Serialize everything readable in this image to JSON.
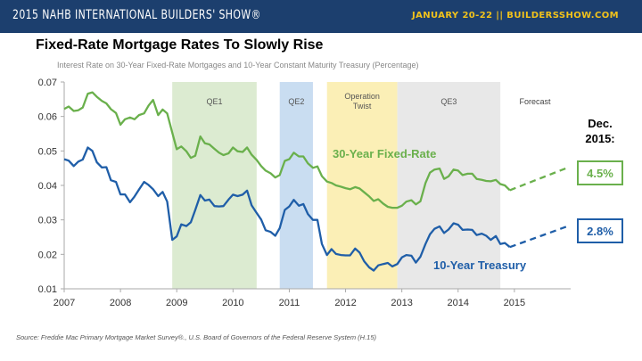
{
  "header": {
    "show_title": "2015 NAHB INTERNATIONAL BUILDERS' SHOW®",
    "show_dates": "JANUARY 20-22 || BUILDERSSHOW.COM"
  },
  "slide_title": "Fixed-Rate Mortgage Rates To Slowly Rise",
  "source": "Source: Freddie Mac Primary Mortgage Market Survey®., U.S. Board of Governors of the Federal Reserve System (H.15)",
  "colors": {
    "banner": "#1c3f6e",
    "fixed_rate": "#6ab04c",
    "treasury": "#1f5ea8",
    "qe_band": "#dcebd1",
    "qe2_band": "#c9ddf1",
    "twist_band": "#fbefb6",
    "qe3_band": "#e8e8e8"
  },
  "chart_data": {
    "type": "line",
    "title": "Interest Rate on 30-Year Fixed-Rate Mortgages and 10-Year Constant Maturity Treasury (Percentage)",
    "xlabel": "",
    "ylabel": "",
    "xlim": [
      2007,
      2016
    ],
    "ylim": [
      0.01,
      0.07
    ],
    "x_ticks": [
      "2007",
      "2008",
      "2009",
      "2010",
      "2011",
      "2012",
      "2013",
      "2014",
      "2015"
    ],
    "y_ticks": [
      "0.01",
      "0.02",
      "0.03",
      "0.04",
      "0.05",
      "0.06",
      "0.07"
    ],
    "bands": [
      {
        "label": "QE1",
        "start": 2008.92,
        "end": 2010.42,
        "color": "#dcebd1"
      },
      {
        "label": "QE2",
        "start": 2010.83,
        "end": 2011.42,
        "color": "#c9ddf1"
      },
      {
        "label": "Operation Twist",
        "start": 2011.67,
        "end": 2012.92,
        "color": "#fbefb6"
      },
      {
        "label": "QE3",
        "start": 2012.92,
        "end": 2014.75,
        "color": "#e8e8e8"
      }
    ],
    "forecast_label": "Forecast",
    "forecast_start": 2014.92,
    "series": [
      {
        "name": "30-Year Fixed-Rate",
        "color": "#6ab04c",
        "x": [
          2007.0,
          2007.08,
          2007.17,
          2007.25,
          2007.33,
          2007.42,
          2007.5,
          2007.58,
          2007.67,
          2007.75,
          2007.83,
          2007.92,
          2008.0,
          2008.08,
          2008.17,
          2008.25,
          2008.33,
          2008.42,
          2008.5,
          2008.58,
          2008.67,
          2008.75,
          2008.83,
          2008.92,
          2009.0,
          2009.08,
          2009.17,
          2009.25,
          2009.33,
          2009.42,
          2009.5,
          2009.58,
          2009.67,
          2009.75,
          2009.83,
          2009.92,
          2010.0,
          2010.08,
          2010.17,
          2010.25,
          2010.33,
          2010.42,
          2010.5,
          2010.58,
          2010.67,
          2010.75,
          2010.83,
          2010.92,
          2011.0,
          2011.08,
          2011.17,
          2011.25,
          2011.33,
          2011.42,
          2011.5,
          2011.58,
          2011.67,
          2011.75,
          2011.83,
          2011.92,
          2012.0,
          2012.08,
          2012.17,
          2012.25,
          2012.33,
          2012.42,
          2012.5,
          2012.58,
          2012.67,
          2012.75,
          2012.83,
          2012.92,
          2013.0,
          2013.08,
          2013.17,
          2013.25,
          2013.33,
          2013.42,
          2013.5,
          2013.58,
          2013.67,
          2013.75,
          2013.83,
          2013.92,
          2014.0,
          2014.08,
          2014.17,
          2014.25,
          2014.33,
          2014.42,
          2014.5,
          2014.58,
          2014.67,
          2014.75,
          2014.83,
          2014.92
        ],
        "values": [
          0.0622,
          0.0629,
          0.0616,
          0.0618,
          0.0626,
          0.0666,
          0.067,
          0.0657,
          0.0645,
          0.0638,
          0.0621,
          0.061,
          0.0576,
          0.0592,
          0.0597,
          0.0592,
          0.0604,
          0.0609,
          0.0632,
          0.0648,
          0.0604,
          0.062,
          0.0609,
          0.0553,
          0.0505,
          0.0513,
          0.0499,
          0.048,
          0.0486,
          0.0542,
          0.0522,
          0.0519,
          0.0506,
          0.0495,
          0.0488,
          0.0493,
          0.051,
          0.0499,
          0.0497,
          0.051,
          0.0489,
          0.0474,
          0.0456,
          0.0443,
          0.0435,
          0.0423,
          0.043,
          0.0471,
          0.0476,
          0.0495,
          0.0484,
          0.0484,
          0.0464,
          0.0451,
          0.0455,
          0.0427,
          0.0411,
          0.0407,
          0.04,
          0.0396,
          0.0392,
          0.0389,
          0.0395,
          0.0391,
          0.038,
          0.0368,
          0.0355,
          0.036,
          0.0347,
          0.0338,
          0.0335,
          0.0335,
          0.0341,
          0.0353,
          0.0357,
          0.0345,
          0.0354,
          0.0407,
          0.0437,
          0.0446,
          0.0449,
          0.0419,
          0.0426,
          0.0446,
          0.0443,
          0.043,
          0.0434,
          0.0434,
          0.0419,
          0.0416,
          0.0413,
          0.0412,
          0.0416,
          0.0404,
          0.04,
          0.0386
        ]
      },
      {
        "name": "10-Year Treasury",
        "color": "#1f5ea8",
        "x": [
          2007.0,
          2007.08,
          2007.17,
          2007.25,
          2007.33,
          2007.42,
          2007.5,
          2007.58,
          2007.67,
          2007.75,
          2007.83,
          2007.92,
          2008.0,
          2008.08,
          2008.17,
          2008.25,
          2008.33,
          2008.42,
          2008.5,
          2008.58,
          2008.67,
          2008.75,
          2008.83,
          2008.92,
          2009.0,
          2009.08,
          2009.17,
          2009.25,
          2009.33,
          2009.42,
          2009.5,
          2009.58,
          2009.67,
          2009.75,
          2009.83,
          2009.92,
          2010.0,
          2010.08,
          2010.17,
          2010.25,
          2010.33,
          2010.42,
          2010.5,
          2010.58,
          2010.67,
          2010.75,
          2010.83,
          2010.92,
          2011.0,
          2011.08,
          2011.17,
          2011.25,
          2011.33,
          2011.42,
          2011.5,
          2011.58,
          2011.67,
          2011.75,
          2011.83,
          2011.92,
          2012.0,
          2012.08,
          2012.17,
          2012.25,
          2012.33,
          2012.42,
          2012.5,
          2012.58,
          2012.67,
          2012.75,
          2012.83,
          2012.92,
          2013.0,
          2013.08,
          2013.17,
          2013.25,
          2013.33,
          2013.42,
          2013.5,
          2013.58,
          2013.67,
          2013.75,
          2013.83,
          2013.92,
          2014.0,
          2014.08,
          2014.17,
          2014.25,
          2014.33,
          2014.42,
          2014.5,
          2014.58,
          2014.67,
          2014.75,
          2014.83,
          2014.92
        ],
        "values": [
          0.0476,
          0.0472,
          0.0456,
          0.0469,
          0.0475,
          0.051,
          0.05,
          0.0467,
          0.0452,
          0.0453,
          0.0415,
          0.041,
          0.0374,
          0.0374,
          0.0351,
          0.0368,
          0.0388,
          0.041,
          0.0401,
          0.0389,
          0.0369,
          0.0381,
          0.0353,
          0.0242,
          0.0252,
          0.0287,
          0.0282,
          0.0293,
          0.0329,
          0.0372,
          0.0356,
          0.0359,
          0.034,
          0.0339,
          0.034,
          0.0359,
          0.0373,
          0.0369,
          0.0373,
          0.0385,
          0.0342,
          0.032,
          0.0301,
          0.027,
          0.0265,
          0.0254,
          0.0276,
          0.0329,
          0.0339,
          0.0358,
          0.0341,
          0.0346,
          0.0317,
          0.03,
          0.03,
          0.023,
          0.0198,
          0.0215,
          0.0201,
          0.0198,
          0.0197,
          0.0197,
          0.0217,
          0.0205,
          0.018,
          0.0162,
          0.0153,
          0.0168,
          0.0172,
          0.0175,
          0.0165,
          0.0172,
          0.0191,
          0.0198,
          0.0196,
          0.0176,
          0.0193,
          0.023,
          0.0258,
          0.0274,
          0.0281,
          0.0262,
          0.0272,
          0.029,
          0.0286,
          0.0271,
          0.0272,
          0.0271,
          0.0256,
          0.026,
          0.0254,
          0.0242,
          0.0253,
          0.023,
          0.0233,
          0.0221
        ]
      }
    ],
    "forecast": [
      {
        "name": "30-Year Fixed-Rate",
        "x": [
          2014.92,
          2015.92
        ],
        "values": [
          0.0386,
          0.045
        ],
        "color": "#6ab04c"
      },
      {
        "name": "10-Year Treasury",
        "x": [
          2014.92,
          2015.92
        ],
        "values": [
          0.0221,
          0.028
        ],
        "color": "#1f5ea8"
      }
    ],
    "annotations": {
      "fixed_label": "30-Year Fixed-Rate",
      "treasury_label": "10-Year Treasury",
      "dec_label_1": "Dec.",
      "dec_label_2": "2015:",
      "fixed_box": "4.5%",
      "treasury_box": "2.8%"
    }
  }
}
